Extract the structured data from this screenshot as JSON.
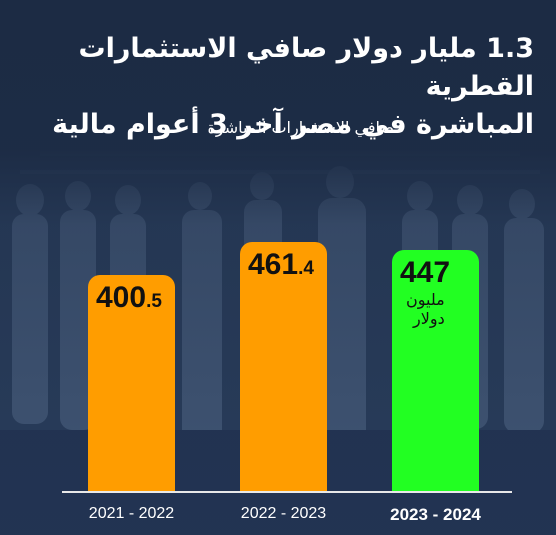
{
  "title_lines": [
    "1.3 مليار دولار صافي الاستثمارات القطرية",
    "المباشرة في مصر آخر 3 أعوام مالية"
  ],
  "colors": {
    "background": "#1c2b44",
    "bar_past": "#ff9d00",
    "bar_latest": "#22ff22",
    "text_light": "#ffffff",
    "text_dark": "#111111"
  },
  "chart_data": {
    "type": "bar",
    "title": "1.3 مليار دولار صافي الاستثمارات القطرية المباشرة في مصر آخر 3 أعوام مالية",
    "subtitle": "صافي الاستثمارات المباشرة",
    "categories": [
      "2021 - 2022",
      "2022 - 2023",
      "2023 - 2024"
    ],
    "values": [
      400.5,
      461.4,
      447
    ],
    "value_labels": [
      {
        "int": "400",
        "dec": ".5"
      },
      {
        "int": "461",
        "dec": ".4"
      },
      {
        "int": "447",
        "dec": ""
      }
    ],
    "unit_label_lines": [
      "مليون",
      "دولار"
    ],
    "ylim": [
      0,
      520
    ],
    "grid": false,
    "highlight_index": 2
  }
}
